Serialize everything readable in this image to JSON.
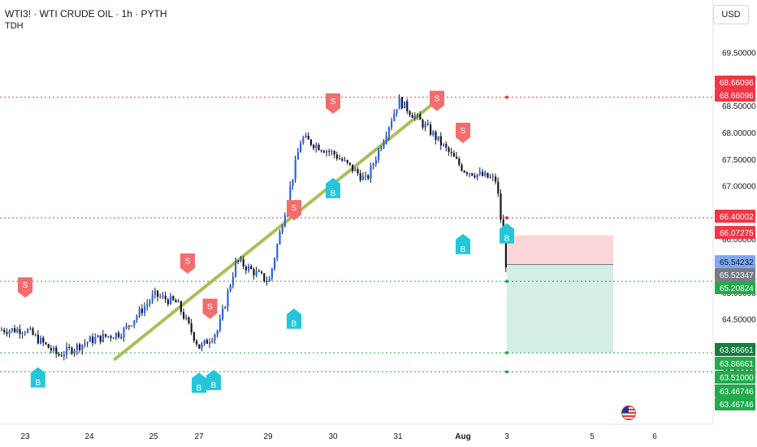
{
  "header": {
    "symbol_line": "WTI3! · WTI CRUDE OIL · 1h · PYTH",
    "indicator": "TDH",
    "currency_button": "USD"
  },
  "colors": {
    "up": "#2962ff",
    "down": "#131722",
    "resistance": "#f23645",
    "support": "#089981",
    "trendline": "#9ab53a",
    "sell_marker": "#f26d6d",
    "buy_marker": "#26c6da",
    "stop_zone": "#fcd6d8",
    "target_zone": "#d3ede7"
  },
  "chart_data": {
    "type": "candlestick",
    "title": "WTI3! · WTI CRUDE OIL · 1h · PYTH",
    "x_axis_labels": [
      "23",
      "24",
      "25",
      "27",
      "29",
      "30",
      "31",
      "Aug",
      "3",
      "5",
      "6"
    ],
    "y_axis_ticks": [
      69.5,
      69.0,
      68.5,
      68.0,
      67.5,
      67.0,
      66.5,
      66.0,
      65.5,
      65.0,
      64.5,
      64.0,
      63.5
    ],
    "y_axis_tick_labels": [
      "69.50000",
      "69.00000",
      "68.50000",
      "68.00000",
      "67.50000",
      "67.00000",
      "66.50000",
      "66.00000",
      "65.50000",
      "65.00000",
      "64.50000",
      "64.00000",
      "63.50000"
    ],
    "ylim": [
      63.5,
      70.0
    ],
    "grid": false,
    "price_path": [
      {
        "date": "23",
        "price": 64.3
      },
      {
        "date": "23.5",
        "price": 63.82
      },
      {
        "date": "24",
        "price": 64.1
      },
      {
        "date": "24.5",
        "price": 64.25
      },
      {
        "date": "25",
        "price": 64.95
      },
      {
        "date": "26",
        "price": 64.8
      },
      {
        "date": "27",
        "price": 63.95
      },
      {
        "date": "27.5",
        "price": 64.3
      },
      {
        "date": "28",
        "price": 65.6
      },
      {
        "date": "29",
        "price": 65.2
      },
      {
        "date": "29.5",
        "price": 67.9
      },
      {
        "date": "30",
        "price": 67.6
      },
      {
        "date": "30.5",
        "price": 67.1
      },
      {
        "date": "31",
        "price": 68.6
      },
      {
        "date": "31.5",
        "price": 68.0
      },
      {
        "date": "Aug",
        "price": 67.3
      },
      {
        "date": "Aug.5",
        "price": 67.1
      },
      {
        "date": "3",
        "price": 65.25
      },
      {
        "date": "3.2",
        "price": 65.45
      }
    ],
    "horizontal_levels": [
      {
        "kind": "resistance",
        "value": 68.66096
      },
      {
        "kind": "resistance",
        "value": 66.40002
      },
      {
        "kind": "support",
        "value": 65.20824
      },
      {
        "kind": "support",
        "value": 63.86661
      },
      {
        "kind": "support",
        "value": 63.51
      }
    ],
    "trendline": {
      "from": {
        "date": "24.4",
        "price": 63.75
      },
      "to": {
        "date": "31.6",
        "price": 68.6
      }
    },
    "signals": [
      {
        "label": "S",
        "type": "sell",
        "date": "23",
        "price": 65.1
      },
      {
        "label": "B",
        "type": "buy",
        "date": "23.2",
        "price": 63.4
      },
      {
        "label": "S",
        "type": "sell",
        "date": "26.5",
        "price": 65.55
      },
      {
        "label": "S",
        "type": "sell",
        "date": "27.3",
        "price": 64.7
      },
      {
        "label": "B",
        "type": "buy",
        "date": "27",
        "price": 63.3
      },
      {
        "label": "B",
        "type": "buy",
        "date": "27.4",
        "price": 63.35
      },
      {
        "label": "B",
        "type": "buy",
        "date": "29.4",
        "price": 64.5
      },
      {
        "label": "S",
        "type": "sell",
        "date": "29.4",
        "price": 66.55
      },
      {
        "label": "S",
        "type": "sell",
        "date": "30",
        "price": 68.55
      },
      {
        "label": "B",
        "type": "buy",
        "date": "30",
        "price": 66.95
      },
      {
        "label": "S",
        "type": "sell",
        "date": "31.6",
        "price": 68.6
      },
      {
        "label": "S",
        "type": "sell",
        "date": "Aug",
        "price": 68.0
      },
      {
        "label": "B",
        "type": "buy",
        "date": "Aug",
        "price": 65.9
      },
      {
        "label": "B",
        "type": "buy",
        "date": "3",
        "price": 66.1
      }
    ],
    "position_tool": {
      "entry": 65.52347,
      "stop": 66.07275,
      "target": 63.86661
    },
    "price_labels": [
      {
        "text": "68.66096",
        "kind": "resistance",
        "value": 68.66096
      },
      {
        "text": "68.66096",
        "kind": "resistance",
        "value": 68.66096
      },
      {
        "text": "66.40002",
        "kind": "resistance",
        "value": 66.40002
      },
      {
        "text": "66.07275",
        "kind": "stop",
        "value": 66.07275
      },
      {
        "text": "65.54232",
        "kind": "current",
        "value": 65.54232
      },
      {
        "text": "65.52347",
        "kind": "entry",
        "value": 65.52347
      },
      {
        "text": "65.20824",
        "kind": "support",
        "value": 65.20824
      },
      {
        "text": "63.86661",
        "kind": "target",
        "value": 63.86661
      },
      {
        "text": "63.86661",
        "kind": "support",
        "value": 63.86661
      },
      {
        "text": "63.51000",
        "kind": "support",
        "value": 63.51
      },
      {
        "text": "63.46746",
        "kind": "support",
        "value": 63.46746
      },
      {
        "text": "63.46746",
        "kind": "support",
        "value": 63.46746
      }
    ]
  }
}
